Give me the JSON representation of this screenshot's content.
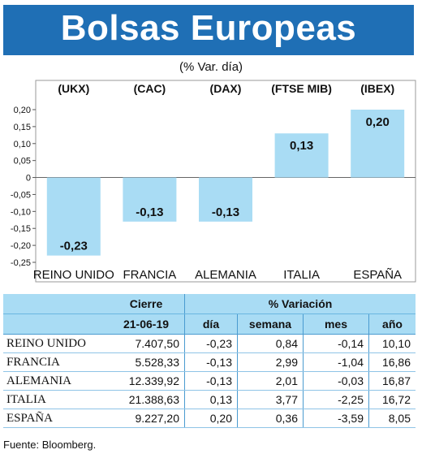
{
  "header": {
    "title": "Bolsas Europeas",
    "subtitle": "(% Var. día)"
  },
  "chart_data": {
    "type": "bar",
    "categories": [
      "REINO UNIDO",
      "FRANCIA",
      "ALEMANIA",
      "ITALIA",
      "ESPAÑA"
    ],
    "index_codes": [
      "(UKX)",
      "(CAC)",
      "(DAX)",
      "(FTSE MIB)",
      "(IBEX)"
    ],
    "values": [
      -0.23,
      -0.13,
      -0.13,
      0.13,
      0.2
    ],
    "value_labels": [
      "-0,23",
      "-0,13",
      "-0,13",
      "0,13",
      "0,20"
    ],
    "ylim": [
      -0.25,
      0.2
    ],
    "yticks": [
      "0,20",
      "0,15",
      "0,10",
      "0,05",
      "0",
      "-0,05",
      "-0,10",
      "-0,15",
      "-0,20",
      "-0,25"
    ],
    "bar_color": "#a9dcf4"
  },
  "table": {
    "group_headers": {
      "cierre": "Cierre",
      "variacion": "% Variación"
    },
    "sub_headers": {
      "fecha": "21-06-19",
      "dia": "día",
      "semana": "semana",
      "mes": "mes",
      "ano": "año"
    },
    "rows": [
      {
        "pais": "REINO UNIDO",
        "cierre": "7.407,50",
        "dia": "-0,23",
        "semana": "0,84",
        "mes": "-0,14",
        "ano": "10,10"
      },
      {
        "pais": "FRANCIA",
        "cierre": "5.528,33",
        "dia": "-0,13",
        "semana": "2,99",
        "mes": "-1,04",
        "ano": "16,86"
      },
      {
        "pais": "ALEMANIA",
        "cierre": "12.339,92",
        "dia": "-0,13",
        "semana": "2,01",
        "mes": "-0,03",
        "ano": "16,87"
      },
      {
        "pais": "ITALIA",
        "cierre": "21.388,63",
        "dia": "0,13",
        "semana": "3,77",
        "mes": "-2,25",
        "ano": "16,72"
      },
      {
        "pais": "ESPAÑA",
        "cierre": "9.227,20",
        "dia": "0,20",
        "semana": "0,36",
        "mes": "-3,59",
        "ano": "8,05"
      }
    ]
  },
  "footer": {
    "source": "Fuente: Bloomberg."
  }
}
